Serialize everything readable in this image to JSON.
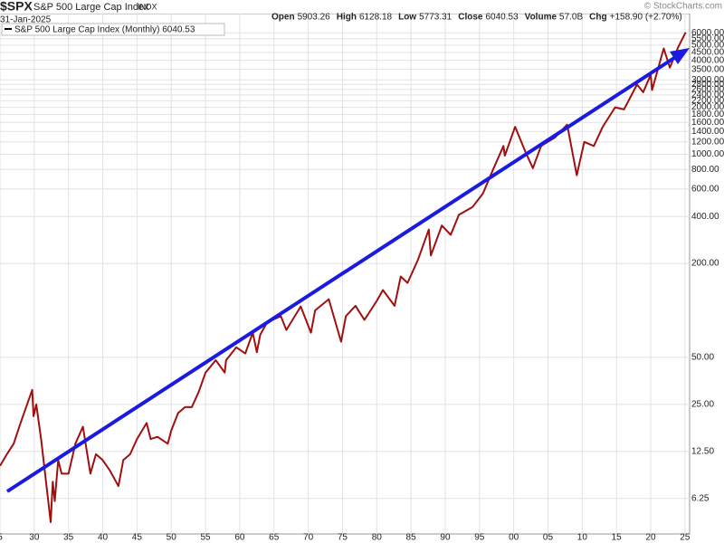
{
  "header": {
    "symbol": "$SPX",
    "name": "S&P 500 Large Cap Index",
    "exchange": "INDX",
    "date": "31-Jan-2025",
    "copyright": "© StockCharts.com",
    "quote": [
      {
        "label": "Open",
        "value": 5903.26
      },
      {
        "label": "High",
        "value": 6128.18
      },
      {
        "label": "Low",
        "value": 5773.31
      },
      {
        "label": "Close",
        "value": 6040.53
      },
      {
        "label": "Volume",
        "value": "57.0B"
      },
      {
        "label": "Chg",
        "value": "+158.90 (+2.70%)"
      }
    ]
  },
  "chart_data": {
    "type": "line",
    "log_scale": true,
    "grid": true,
    "x": [
      1925.0,
      1926.0,
      1927.0,
      1928.0,
      1929.7,
      1929.9,
      1930.3,
      1931.0,
      1932.4,
      1932.7,
      1933.0,
      1933.5,
      1934.0,
      1935.0,
      1936.0,
      1937.1,
      1938.2,
      1939.0,
      1940.0,
      1941.0,
      1942.3,
      1943.0,
      1944.0,
      1945.0,
      1946.4,
      1947.0,
      1948.0,
      1949.5,
      1950.0,
      1951.0,
      1952.0,
      1953.0,
      1954.0,
      1955.0,
      1956.5,
      1957.8,
      1958.0,
      1959.5,
      1960.8,
      1961.9,
      1962.5,
      1963.0,
      1964.0,
      1966.0,
      1966.8,
      1968.9,
      1970.4,
      1971.0,
      1973.0,
      1974.8,
      1975.5,
      1976.9,
      1978.2,
      1980.0,
      1980.9,
      1982.6,
      1983.5,
      1984.5,
      1986.0,
      1987.6,
      1987.9,
      1989.5,
      1990.8,
      1992.0,
      1994.0,
      1995.5,
      1997.0,
      1998.5,
      1998.7,
      2000.2,
      2001.7,
      2002.8,
      2004.0,
      2006.0,
      2007.8,
      2009.2,
      2010.3,
      2011.7,
      2013.0,
      2014.8,
      2016.1,
      2018.0,
      2018.9,
      2020.0,
      2020.2,
      2021.9,
      2022.8,
      2024.0,
      2025.1
    ],
    "series": [
      {
        "name": "S&P 500 Large Cap Index (Monthly) 6040.53",
        "color": "#a01010",
        "values": [
          10.1,
          12,
          14,
          19,
          31,
          21,
          25,
          15,
          4.4,
          8,
          6,
          11,
          9,
          9,
          14,
          18,
          9,
          12,
          11,
          9.5,
          7.5,
          11,
          12,
          15,
          19,
          15,
          15.5,
          14,
          17,
          22,
          24,
          24,
          30,
          40,
          48,
          40,
          48,
          58,
          53,
          72,
          54,
          70,
          84,
          92,
          75,
          106,
          72,
          100,
          118,
          63,
          92,
          107,
          87,
          115,
          135,
          107,
          165,
          150,
          210,
          330,
          225,
          350,
          305,
          410,
          460,
          560,
          800,
          1130,
          980,
          1500,
          1040,
          815,
          1130,
          1280,
          1550,
          735,
          1200,
          1130,
          1500,
          2000,
          1940,
          2800,
          2500,
          3230,
          2580,
          4770,
          3590,
          4850,
          6040
        ]
      }
    ],
    "xlim": [
      1925,
      2027
    ],
    "xticks": [
      {
        "value": 1925,
        "label": "5"
      },
      {
        "value": 1930,
        "label": "30"
      },
      {
        "value": 1935,
        "label": "35"
      },
      {
        "value": 1940,
        "label": "40"
      },
      {
        "value": 1945,
        "label": "45"
      },
      {
        "value": 1950,
        "label": "50"
      },
      {
        "value": 1955,
        "label": "55"
      },
      {
        "value": 1960,
        "label": "60"
      },
      {
        "value": 1965,
        "label": "65"
      },
      {
        "value": 1970,
        "label": "70"
      },
      {
        "value": 1975,
        "label": "75"
      },
      {
        "value": 1980,
        "label": "80"
      },
      {
        "value": 1985,
        "label": "85"
      },
      {
        "value": 1990,
        "label": "90"
      },
      {
        "value": 1995,
        "label": "95"
      },
      {
        "value": 2000,
        "label": "00"
      },
      {
        "value": 2005,
        "label": "05"
      },
      {
        "value": 2010,
        "label": "10"
      },
      {
        "value": 2015,
        "label": "15"
      },
      {
        "value": 2020,
        "label": "20"
      },
      {
        "value": 2025,
        "label": "25"
      }
    ],
    "ylim": [
      3.7,
      6700
    ],
    "yticks": [
      6.25,
      {
        "value": 12.5,
        "label": "12.50"
      },
      {
        "value": 25,
        "label": "25.00"
      },
      {
        "value": 50,
        "label": "50.00"
      },
      {
        "value": 200,
        "label": "200.00"
      },
      {
        "value": 400,
        "label": "400.00"
      },
      {
        "value": 600,
        "label": "600.00"
      },
      {
        "value": 800,
        "label": "800.00"
      },
      {
        "value": 1000,
        "label": "1000.00"
      },
      {
        "value": 1200,
        "label": "1200.00"
      },
      {
        "value": 1400,
        "label": "1400.00"
      },
      {
        "value": 1600,
        "label": "1600.00"
      },
      {
        "value": 1800,
        "label": "1800.00"
      },
      {
        "value": 2000,
        "label": "2000.00"
      },
      {
        "value": 2200,
        "label": "2200.00"
      },
      {
        "value": 2400,
        "label": "2400.00"
      },
      {
        "value": 2600,
        "label": "2600.00"
      },
      {
        "value": 2800,
        "label": "2800.00"
      },
      {
        "value": 3000,
        "label": "3000.00"
      },
      {
        "value": 3500,
        "label": "3500.00"
      },
      {
        "value": 4000,
        "label": "4000.00"
      },
      {
        "value": 4500,
        "label": "4500.00"
      },
      {
        "value": 5000,
        "label": "5000.00"
      },
      {
        "value": 5500,
        "label": "5500.00"
      },
      {
        "value": 6000,
        "label": "6000.00"
      }
    ]
  }
}
